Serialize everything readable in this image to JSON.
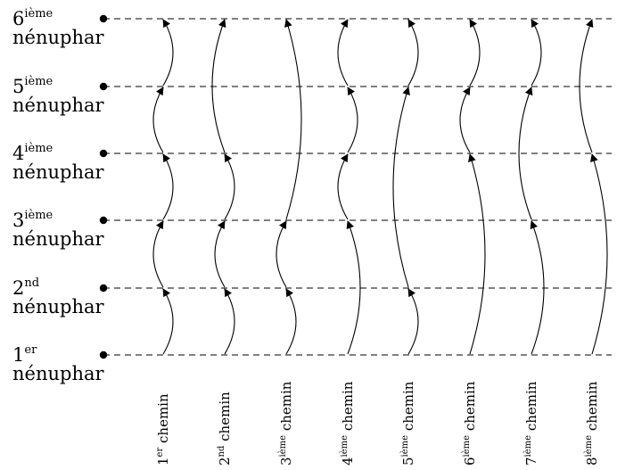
{
  "lily_pads": [
    {
      "num": "1",
      "sup": "er",
      "word": "nénuphar"
    },
    {
      "num": "2",
      "sup": "nd",
      "word": "nénuphar"
    },
    {
      "num": "3",
      "sup": "ième",
      "word": "nénuphar"
    },
    {
      "num": "4",
      "sup": "ième",
      "word": "nénuphar"
    },
    {
      "num": "5",
      "sup": "ième",
      "word": "nénuphar"
    },
    {
      "num": "6",
      "sup": "ième",
      "word": "nénuphar"
    }
  ],
  "paths": [
    {
      "num": "1",
      "sup": "er",
      "word": "chemin",
      "hops": [
        1,
        1,
        1,
        1,
        1
      ]
    },
    {
      "num": "2",
      "sup": "nd",
      "word": "chemin",
      "hops": [
        1,
        1,
        1,
        2
      ]
    },
    {
      "num": "3",
      "sup": "ième",
      "word": "chemin",
      "hops": [
        1,
        1,
        3
      ]
    },
    {
      "num": "4",
      "sup": "ième",
      "word": "chemin",
      "hops": [
        2,
        1,
        1,
        1
      ]
    },
    {
      "num": "5",
      "sup": "ième",
      "word": "chemin",
      "hops": [
        1,
        3,
        1
      ]
    },
    {
      "num": "6",
      "sup": "ième",
      "word": "chemin",
      "hops": [
        3,
        1,
        1
      ]
    },
    {
      "num": "7",
      "sup": "ième",
      "word": "chemin",
      "hops": [
        2,
        2,
        1
      ]
    },
    {
      "num": "8",
      "sup": "ième",
      "word": "chemin",
      "hops": [
        3,
        2
      ]
    }
  ],
  "colors": {
    "ink": "#000000",
    "background": "#ffffff"
  }
}
